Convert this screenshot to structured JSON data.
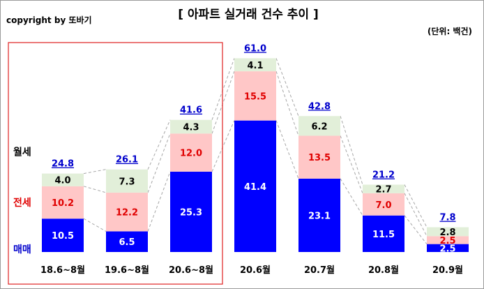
{
  "copyright": "copyright by 또바기",
  "chart_data": {
    "type": "bar",
    "stacked": true,
    "title": "[ 아파트 실거래 건수 추이 ]",
    "unit_label": "(단위: 백건)",
    "categories": [
      "18.6~8월",
      "19.6~8월",
      "20.6~8월",
      "20.6월",
      "20.7월",
      "20.8월",
      "20.9월"
    ],
    "series": [
      {
        "name": "매매",
        "color": "#0000ff",
        "label_color": "#ffffff",
        "values": [
          10.5,
          6.5,
          25.3,
          41.4,
          23.1,
          11.5,
          2.5
        ]
      },
      {
        "name": "전세",
        "color": "#ffc7c7",
        "label_color": "#e00000",
        "values": [
          10.2,
          12.2,
          12.0,
          15.5,
          13.5,
          7.0,
          2.5
        ]
      },
      {
        "name": "월세",
        "color": "#e2efd9",
        "label_color": "#000000",
        "values": [
          4.0,
          7.3,
          4.3,
          4.1,
          6.2,
          2.7,
          2.8
        ]
      }
    ],
    "totals": [
      "24.8",
      "26.1",
      "41.6",
      "61.0",
      "42.8",
      "21.2",
      "7.8"
    ],
    "total_color": "#0000cc",
    "highlight_box": {
      "categories": [
        "18.6~8월",
        "19.6~8월",
        "20.6~8월"
      ],
      "color": "#e02020"
    },
    "connector_lines": true,
    "grid": false,
    "legend": "left-inline",
    "ylim": [
      0,
      61
    ]
  }
}
